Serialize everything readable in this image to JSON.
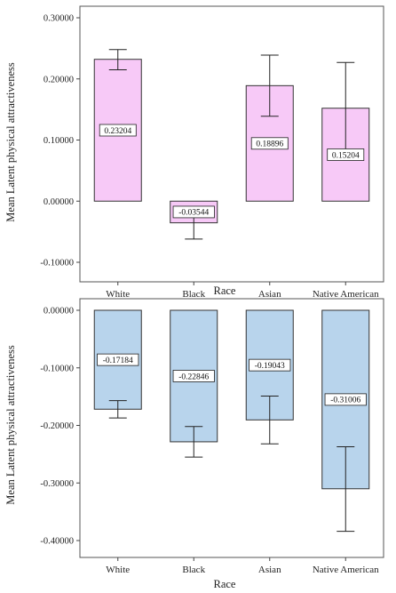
{
  "chart_data": [
    {
      "type": "bar",
      "xlabel": "Race",
      "ylabel": "Mean Latent physical attractiveness",
      "categories": [
        "White",
        "Black",
        "Asian",
        "Native American"
      ],
      "values": [
        0.23204,
        -0.03544,
        0.18896,
        0.15204
      ],
      "value_labels": [
        "0.23204",
        "-0.03544",
        "0.18896",
        "0.15204"
      ],
      "error_low": [
        0.215,
        -0.062,
        0.139,
        0.08
      ],
      "error_high": [
        0.248,
        -0.009,
        0.239,
        0.227
      ],
      "ylim": [
        -0.1,
        0.3
      ],
      "yticks": [
        -0.1,
        0.0,
        0.1,
        0.2,
        0.3
      ],
      "ytick_labels": [
        "-0.10000",
        "0.00000",
        "0.10000",
        "0.20000",
        "0.30000"
      ],
      "bar_color": "#f7c9f7",
      "grid": false
    },
    {
      "type": "bar",
      "xlabel": "Race",
      "ylabel": "Mean Latent physical attractiveness",
      "categories": [
        "White",
        "Black",
        "Asian",
        "Native American"
      ],
      "values": [
        -0.17184,
        -0.22846,
        -0.19043,
        -0.31006
      ],
      "value_labels": [
        "-0.17184",
        "-0.22846",
        "-0.19043",
        "-0.31006"
      ],
      "error_low": [
        -0.187,
        -0.255,
        -0.232,
        -0.384
      ],
      "error_high": [
        -0.157,
        -0.202,
        -0.149,
        -0.237
      ],
      "ylim": [
        -0.4,
        0.0
      ],
      "yticks": [
        -0.4,
        -0.3,
        -0.2,
        -0.1,
        0.0
      ],
      "ytick_labels": [
        "-0.40000",
        "-0.30000",
        "-0.20000",
        "-0.10000",
        "0.00000"
      ],
      "bar_color": "#b8d4ec",
      "grid": false
    }
  ]
}
